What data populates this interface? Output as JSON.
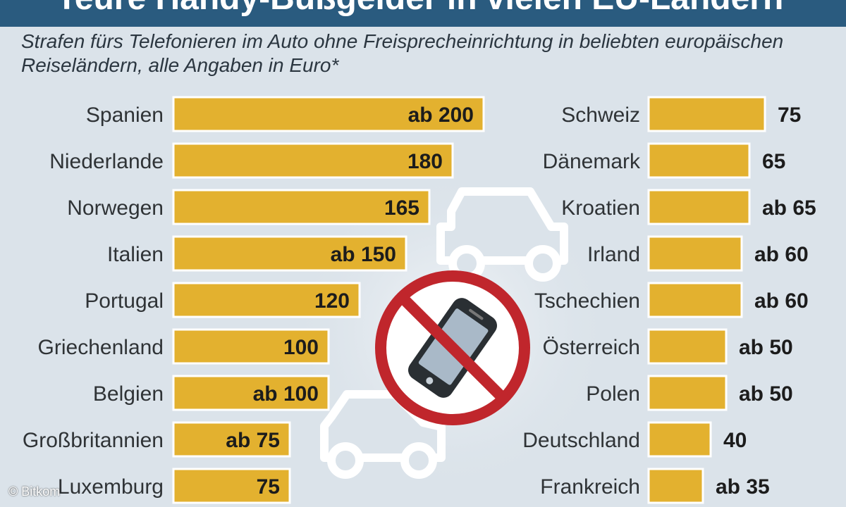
{
  "header": {
    "title": "Teure Handy-Bußgelder in vielen EU-Ländern",
    "subtitle": "Strafen fürs Telefonieren im Auto ohne Freisprecheinrichtung in beliebten europäischen Reiseländern, alle Angaben in Euro*"
  },
  "credit": "© Bitkom",
  "colors": {
    "bar": "#e3b12f",
    "bar_stroke": "#ffffff",
    "background": "#dbe3ea",
    "header": "#2a5b7f",
    "ban": "#c0262c"
  },
  "icons": [
    "car-icon",
    "car-icon",
    "no-phone-icon"
  ],
  "chart_data": [
    {
      "type": "bar",
      "orientation": "horizontal",
      "categories": [
        "Spanien",
        "Niederlande",
        "Norwegen",
        "Italien",
        "Portugal",
        "Griechenland",
        "Belgien",
        "Großbritannien",
        "Luxemburg"
      ],
      "values": [
        200,
        180,
        165,
        150,
        120,
        100,
        100,
        75,
        75
      ],
      "labels": [
        "ab 200",
        "180",
        "165",
        "ab 150",
        "120",
        "100",
        "ab 100",
        "ab 75",
        "75"
      ],
      "label_position": "inside-end"
    },
    {
      "type": "bar",
      "orientation": "horizontal",
      "categories": [
        "Schweiz",
        "Dänemark",
        "Kroatien",
        "Irland",
        "Tschechien",
        "Österreich",
        "Polen",
        "Deutschland",
        "Frankreich"
      ],
      "values": [
        75,
        65,
        65,
        60,
        60,
        50,
        50,
        40,
        35
      ],
      "labels": [
        "75",
        "65",
        "ab 65",
        "ab 60",
        "ab 60",
        "ab 50",
        "ab 50",
        "40",
        "ab 35"
      ],
      "label_position": "outside-end"
    }
  ]
}
